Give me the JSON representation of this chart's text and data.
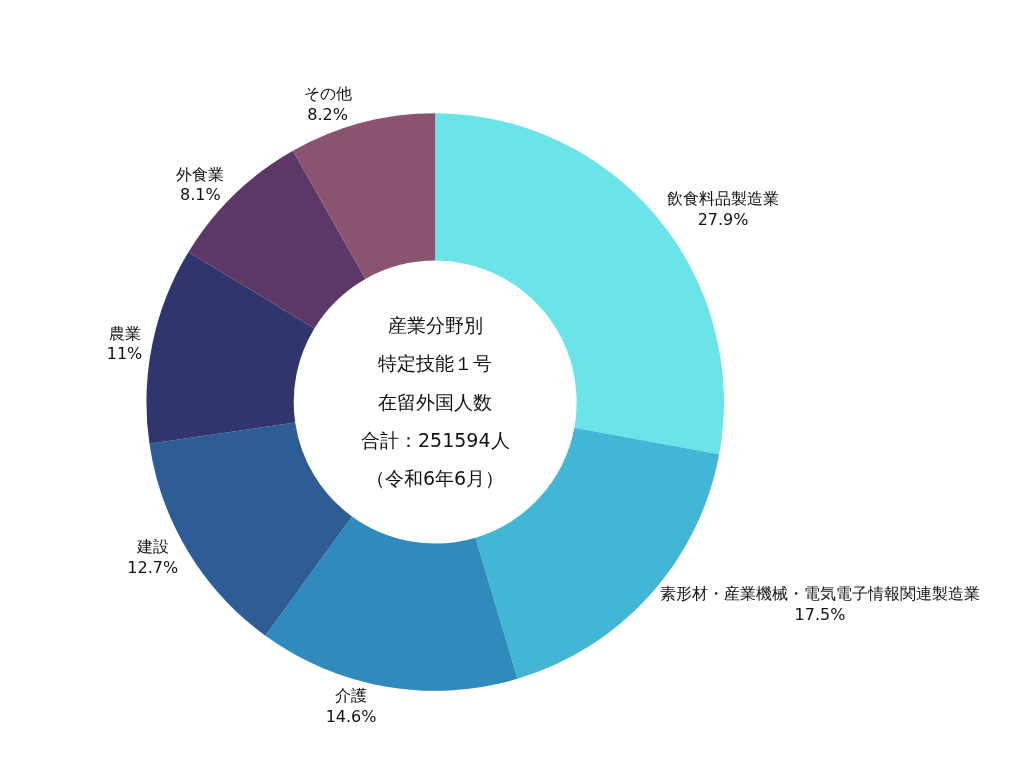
{
  "chart_data": {
    "type": "donut",
    "categories": [
      "飲食料品製造業",
      "素形材・産業機械・電気電子情報関連製造業",
      "介護",
      "建設",
      "農業",
      "外食業",
      "その他"
    ],
    "values": [
      27.9,
      17.5,
      14.6,
      12.7,
      11,
      8.1,
      8.2
    ],
    "value_labels": [
      "27.9%",
      "17.5%",
      "14.6%",
      "12.7%",
      "11%",
      "8.1%",
      "8.2%"
    ],
    "colors": [
      "#6ae4e8",
      "#42b7d5",
      "#2e8bbb",
      "#2e5d96",
      "#30356d",
      "#5c3867",
      "#8a5470"
    ],
    "annotations": [
      "産業分野別",
      "特定技能１号",
      "在留外国人数",
      "合計：251594人",
      "（令和6年6月）"
    ],
    "legend": false
  }
}
